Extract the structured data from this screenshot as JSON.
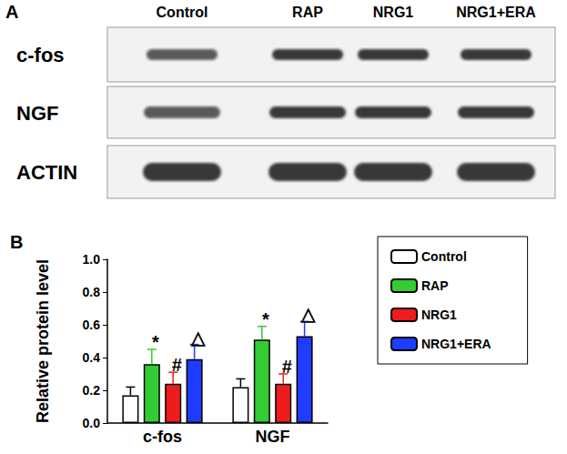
{
  "blot": {
    "panel_label": "A",
    "lanes": [
      "Control",
      "RAP",
      "NRG1",
      "NRG1+ERA"
    ],
    "rows": [
      "c-fos",
      "NGF",
      "ACTIN"
    ]
  },
  "chart_data": {
    "panel_label": "B",
    "type": "bar",
    "categories": [
      "c-fos",
      "NGF"
    ],
    "y_label": "Relative protein level",
    "ylim": [
      0,
      1
    ],
    "yticks": [
      {
        "value": 0,
        "label": "0.0"
      },
      0.2,
      0.4,
      0.6,
      0.8,
      {
        "value": 1,
        "label": "1.0"
      }
    ],
    "legend": "right",
    "series": [
      {
        "name": "Control",
        "color": "#ffffff",
        "values": [
          0.17,
          0.22
        ],
        "errors": [
          0.05,
          0.05
        ]
      },
      {
        "name": "RAP",
        "color": "#33cc33",
        "values": [
          0.36,
          0.51
        ],
        "errors": [
          0.09,
          0.08
        ],
        "annotations": [
          "*",
          "*"
        ]
      },
      {
        "name": "NRG1",
        "color": "#ee1c1c",
        "values": [
          0.24,
          0.24
        ],
        "errors": [
          0.07,
          0.06
        ],
        "annotations": [
          "#",
          "#"
        ]
      },
      {
        "name": "NRG1+ERA",
        "color": "#1f3cff",
        "values": [
          0.39,
          0.53
        ],
        "errors": [
          0.09,
          0.09
        ],
        "annotations": [
          "△",
          "△"
        ]
      }
    ]
  }
}
